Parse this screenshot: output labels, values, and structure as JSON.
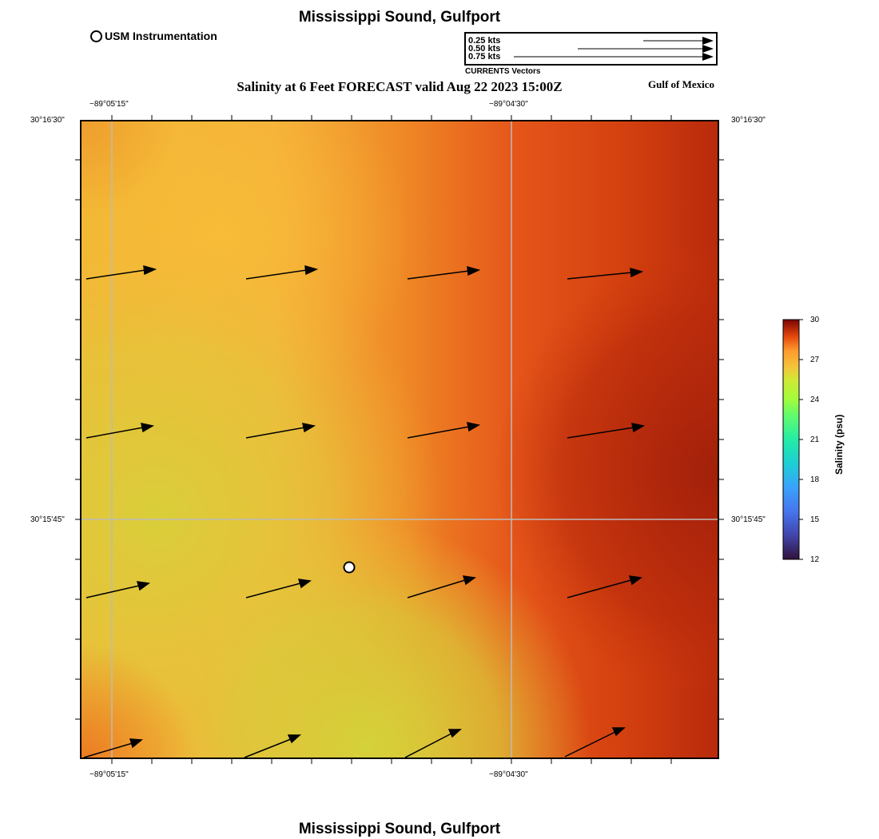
{
  "title_top": "Mississippi Sound, Gulfport",
  "title_bottom": "Mississippi Sound, Gulfport",
  "legend": {
    "usm_label": "USM Instrumentation"
  },
  "subtitle": "Salinity at 6 Feet FORECAST valid Aug 22 2023 15:00Z",
  "region_label": "Gulf of Mexico",
  "vector_key": {
    "caption": "CURRENTS Vectors",
    "entries": [
      {
        "label": "0.25 kts",
        "speed_kts": 0.25
      },
      {
        "label": "0.50 kts",
        "speed_kts": 0.5
      },
      {
        "label": "0.75 kts",
        "speed_kts": 0.75
      }
    ]
  },
  "axes": {
    "top_ticks": [
      "−89°05'15\"",
      "−89°04'30\""
    ],
    "bottom_ticks": [
      "−89°05'15\"",
      "−89°04'30\""
    ],
    "left_ticks": [
      "30°16'30\"",
      "30°15'45\""
    ],
    "right_ticks": [
      "30°16'30\"",
      "30°15'45\""
    ]
  },
  "colorbar": {
    "label": "Salinity (psu)",
    "ticks": [
      "30",
      "27",
      "24",
      "21",
      "18",
      "15",
      "12"
    ],
    "min": 12,
    "max": 30
  },
  "colors": {
    "salinity_low": "#dcd23a",
    "salinity_mid": "#f7b437",
    "salinity_orange": "#ee7a22",
    "salinity_high": "#e04a10",
    "salinity_max": "#a4200a",
    "grid": "#bbbbbb"
  }
}
